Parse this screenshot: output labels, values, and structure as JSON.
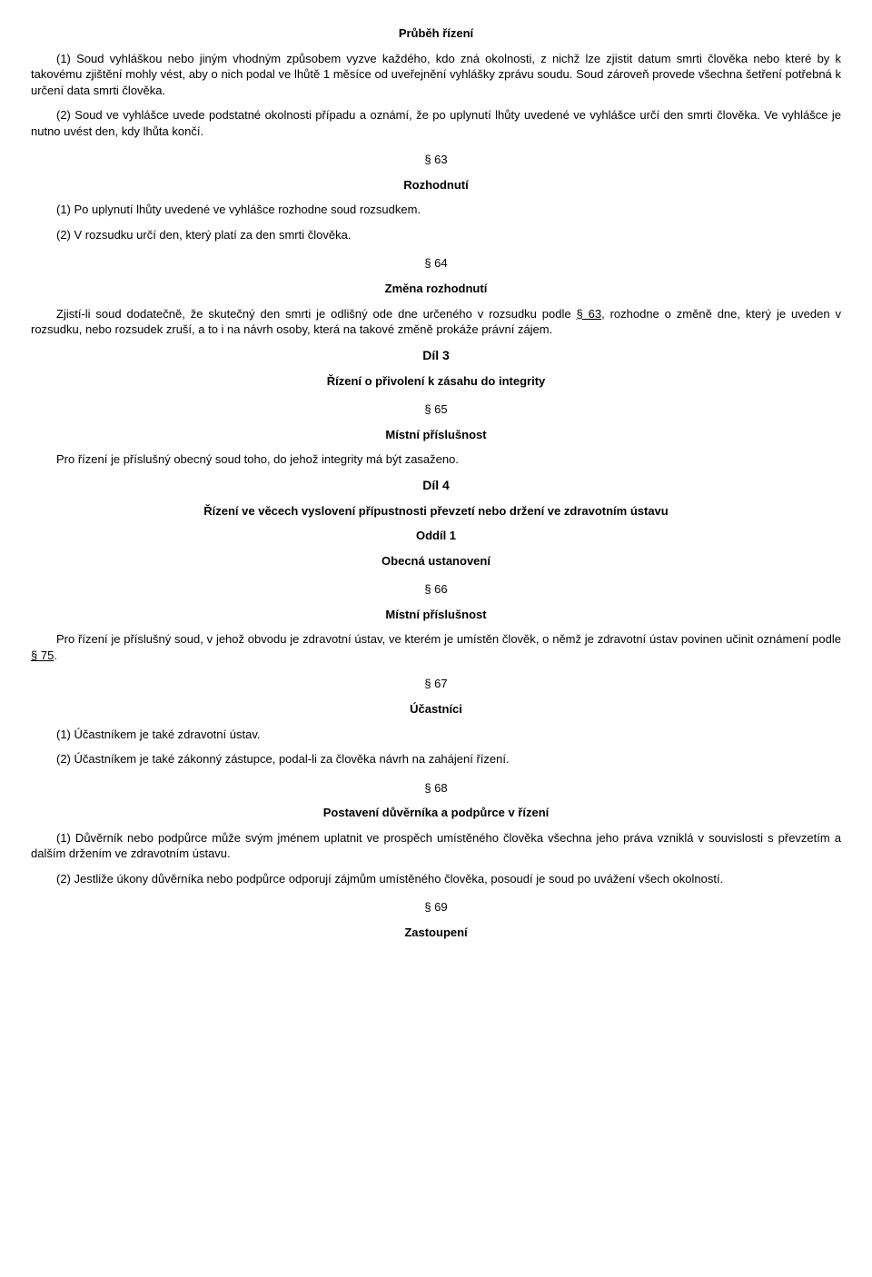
{
  "heading_prubeh": "Průběh řízení",
  "p1": "(1) Soud vyhláškou nebo jiným vhodným způsobem vyzve každého, kdo zná okolnosti, z nichž lze zjistit datum smrti člověka nebo které by k takovému zjištění mohly vést, aby o nich podal ve lhůtě 1 měsíce od uveřejnění vyhlášky zprávu soudu. Soud zároveň provede všechna šetření potřebná k určení data smrti člověka.",
  "p2": "(2) Soud ve vyhlášce uvede podstatné okolnosti případu a oznámí, že po uplynutí lhůty uvedené ve vyhlášce určí den smrti člověka. Ve vyhlášce je nutno uvést den, kdy lhůta končí.",
  "s63_num": "§ 63",
  "s63_title": "Rozhodnutí",
  "s63_p1": "(1) Po uplynutí lhůty uvedené ve vyhlášce rozhodne soud rozsudkem.",
  "s63_p2": "(2) V rozsudku určí den, který platí za den smrti člověka.",
  "s64_num": "§ 64",
  "s64_title": "Změna rozhodnutí",
  "s64_p_a": "Zjistí-li soud dodatečně, že skutečný den smrti je odlišný ode dne určeného v rozsudku podle ",
  "s64_p_link": "§ 63",
  "s64_p_b": ", rozhodne o změně dne, který je uveden v rozsudku, nebo rozsudek zruší, a to i na návrh osoby, která na takové změně prokáže právní zájem.",
  "dil3": "Díl 3",
  "dil3_title": "Řízení o přivolení k zásahu do integrity",
  "s65_num": "§ 65",
  "s65_title": "Místní příslušnost",
  "s65_p": "Pro řízení je příslušný obecný soud toho, do jehož integrity má být zasaženo.",
  "dil4": "Díl 4",
  "dil4_title": "Řízení ve věcech vyslovení přípustnosti převzetí nebo držení ve zdravotním ústavu",
  "oddil1": "Oddíl 1",
  "oddil1_title": "Obecná ustanovení",
  "s66_num": "§ 66",
  "s66_title": "Místní příslušnost",
  "s66_p_a": "Pro řízení je příslušný soud, v jehož obvodu je zdravotní ústav, ve kterém je umístěn člověk, o němž je zdravotní ústav povinen učinit oznámení podle ",
  "s66_p_link": "§ 75",
  "s66_p_b": ".",
  "s67_num": "§ 67",
  "s67_title": "Účastníci",
  "s67_p1": "(1) Účastníkem je také zdravotní ústav.",
  "s67_p2": "(2) Účastníkem je také zákonný zástupce, podal-li za člověka návrh na zahájení řízení.",
  "s68_num": "§ 68",
  "s68_title": "Postavení důvěrníka a podpůrce v řízení",
  "s68_p1": "(1) Důvěrník nebo podpůrce může svým jménem uplatnit ve prospěch umístěného člověka všechna jeho práva vzniklá v souvislosti s převzetím a dalším držením ve zdravotním ústavu.",
  "s68_p2": "(2) Jestliže úkony důvěrníka nebo podpůrce odporují zájmům umístěného člověka, posoudí je soud po uvážení všech okolností.",
  "s69_num": "§ 69",
  "s69_title": "Zastoupení"
}
